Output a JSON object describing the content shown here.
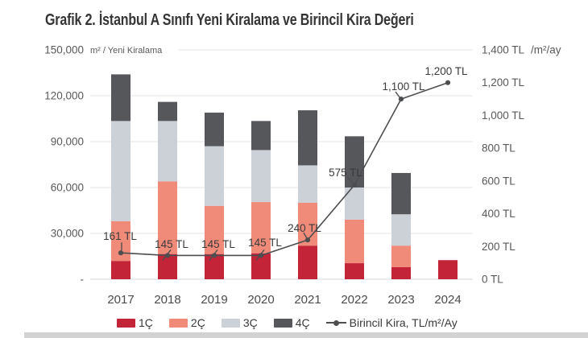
{
  "title": "Grafik 2. İstanbul A Sınıfı Yeni Kiralama ve Birincil Kira Değeri",
  "colors": {
    "q1": "#c42438",
    "q2": "#f18b79",
    "q3": "#ccd1d8",
    "q4": "#56575b",
    "line": "#4d4e50",
    "grid": "#e4e4e4",
    "axis_line": "#d6d6d6",
    "tick_text": "#58595b",
    "label_text": "#3a3a3a",
    "divider": "#d3d3d3"
  },
  "chart_data": {
    "type": "combo: stacked-bar + line",
    "title": "Grafik 2. İstanbul A Sınıfı Yeni Kiralama ve Birincil Kira Değeri",
    "categories": [
      "2017",
      "2018",
      "2019",
      "2020",
      "2021",
      "2022",
      "2023",
      "2024"
    ],
    "series": [
      {
        "name": "1Ç",
        "color": "#c42438",
        "values": [
          12000,
          16500,
          16500,
          17000,
          22000,
          10500,
          8000,
          12500
        ]
      },
      {
        "name": "2Ç",
        "color": "#f18b79",
        "values": [
          26000,
          47500,
          31500,
          33500,
          28000,
          28500,
          14000,
          0
        ]
      },
      {
        "name": "3Ç",
        "color": "#ccd1d8",
        "values": [
          65500,
          39500,
          39000,
          34000,
          24500,
          21000,
          20500,
          0
        ]
      },
      {
        "name": "4Ç",
        "color": "#56575b",
        "values": [
          30500,
          12500,
          22000,
          19000,
          36000,
          33500,
          27000,
          0
        ]
      }
    ],
    "bar_totals": [
      134000,
      116000,
      109000,
      103500,
      110500,
      93500,
      69500,
      12500
    ],
    "line_series": {
      "name": "Birincil Kira, TL/m²/Ay",
      "color": "#4d4e50",
      "values": [
        161,
        145,
        145,
        145,
        240,
        575,
        1100,
        1200
      ],
      "labels": [
        "161 TL",
        "145 TL",
        "145 TL",
        "145 TL",
        "240 TL",
        "575 TL",
        "1,100 TL",
        "1,200 TL"
      ],
      "label_pos": [
        [
          149,
          298
        ],
        [
          213,
          308
        ],
        [
          271,
          308
        ],
        [
          329,
          306
        ],
        [
          378,
          288
        ],
        [
          429,
          219
        ],
        [
          501,
          112
        ],
        [
          554,
          93
        ]
      ],
      "leaders": [
        [
          1,
          -13,
          1,
          -3
        ],
        [
          -6,
          6,
          4,
          -7
        ],
        [
          -6,
          6,
          4,
          -7
        ],
        [
          -6,
          6,
          4,
          -7
        ],
        [
          -5,
          -9,
          -1,
          -2
        ],
        [
          -9,
          -10,
          -1,
          -1
        ],
        [
          -7,
          -9,
          -1,
          -1
        ],
        null
      ]
    },
    "left_axis": {
      "title": "m² / Yeni Kiralama",
      "ticks": [
        "150,000",
        "120,000",
        "90,000",
        "60,000",
        "30,000",
        "-"
      ],
      "tick_values": [
        150000,
        120000,
        90000,
        60000,
        30000,
        0
      ],
      "max": 150000,
      "min": 0
    },
    "right_axis": {
      "title": "/m²/ay",
      "ticks": [
        "1,400 TL",
        "1,200 TL",
        "1,000 TL",
        "800 TL",
        "600 TL",
        "400 TL",
        "200 TL",
        "0 TL"
      ],
      "tick_values": [
        1400,
        1200,
        1000,
        800,
        600,
        400,
        200,
        0
      ],
      "max": 1400,
      "min": 0
    },
    "grid": "horizontal gridlines every 30,000 m², legend below chart",
    "legend": [
      {
        "label": "1Ç",
        "color": "#c42438",
        "type": "chip"
      },
      {
        "label": "2Ç",
        "color": "#f18b79",
        "type": "chip"
      },
      {
        "label": "3Ç",
        "color": "#ccd1d8",
        "type": "chip"
      },
      {
        "label": "4Ç",
        "color": "#56575b",
        "type": "chip"
      },
      {
        "label": "Birincil Kira, TL/m²/Ay",
        "color": "#4d4e50",
        "type": "line"
      }
    ],
    "layout": {
      "baseY": 347,
      "topY": 62,
      "leftX": 112,
      "rightX": 587,
      "leftTickX": 104,
      "rightTickX": 598,
      "rightUnitX": 659,
      "titleClearX": 221,
      "barWidth": 24,
      "xLabelY": 377,
      "centers": [
        150,
        208,
        266,
        324,
        382,
        440,
        498,
        556
      ]
    }
  }
}
